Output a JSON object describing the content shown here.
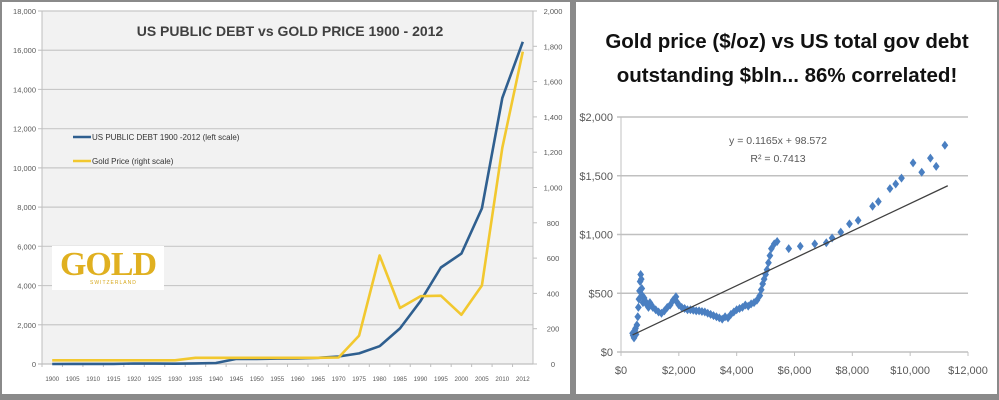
{
  "chart_data": [
    {
      "type": "line",
      "title": "US PUBLIC DEBT vs GOLD PRICE 1900 - 2012",
      "xlabel": "",
      "ylabel": "",
      "categories": [
        "1900",
        "1905",
        "1910",
        "1915",
        "1920",
        "1925",
        "1930",
        "1935",
        "1940",
        "1945",
        "1950",
        "1955",
        "1960",
        "1965",
        "1970",
        "1975",
        "1980",
        "1985",
        "1990",
        "1995",
        "2000",
        "2005",
        "2010",
        "2012"
      ],
      "y_left": {
        "ylim": [
          0,
          18000
        ],
        "ticks": [
          "0",
          "2,000",
          "4,000",
          "6,000",
          "8,000",
          "10,000",
          "12,000",
          "14,000",
          "16,000",
          "18,000"
        ]
      },
      "y_right": {
        "ylim": [
          0,
          2000
        ],
        "ticks": [
          "0",
          "200",
          "400",
          "600",
          "800",
          "1,000",
          "1,200",
          "1,400",
          "1,600",
          "1,800",
          "2,000"
        ]
      },
      "grid": true,
      "legend_placement": "left-middle",
      "series": [
        {
          "name": "US PUBLIC DEBT 1900 -2012 (left scale)",
          "axis": "left",
          "color": "#2f5f8f",
          "values": [
            2,
            3,
            3,
            3,
            24,
            21,
            16,
            29,
            51,
            259,
            257,
            273,
            286,
            317,
            381,
            542,
            909,
            1817,
            3206,
            4921,
            5629,
            7933,
            13562,
            16432
          ]
        },
        {
          "name": "Gold Price (right scale)",
          "axis": "right",
          "color": "#f2c82f",
          "values": [
            21,
            21,
            21,
            21,
            21,
            21,
            21,
            35,
            35,
            35,
            35,
            35,
            35,
            35,
            37,
            161,
            615,
            317,
            384,
            387,
            279,
            445,
            1225,
            1770
          ]
        }
      ],
      "watermark": {
        "main": "GOLD",
        "sub": "SWITZERLAND"
      }
    },
    {
      "type": "scatter",
      "title": "Gold price ($/oz) vs US total gov debt outstanding $bln... 86% correlated!",
      "title_lines": [
        "Gold price ($/oz) vs US total gov debt",
        "outstanding $bln... 86% correlated!"
      ],
      "xlabel": "",
      "ylabel": "",
      "xlim": [
        0,
        12000
      ],
      "ylim": [
        0,
        2000
      ],
      "x_ticks": [
        "$0",
        "$2,000",
        "$4,000",
        "$6,000",
        "$8,000",
        "$10,000",
        "$12,000"
      ],
      "y_ticks": [
        "$0",
        "$500",
        "$1,000",
        "$1,500",
        "$2,000"
      ],
      "grid": true,
      "marker_color": "#4a7fc1",
      "trendline": {
        "slope": 0.1165,
        "intercept": 98.572,
        "x_range": [
          400,
          11300
        ],
        "color": "#404040"
      },
      "annotations": [
        "y = 0.1165x + 98.572",
        "R² = 0.7413"
      ],
      "points": [
        [
          400,
          160
        ],
        [
          420,
          140
        ],
        [
          450,
          120
        ],
        [
          480,
          180
        ],
        [
          500,
          200
        ],
        [
          520,
          150
        ],
        [
          550,
          230
        ],
        [
          580,
          300
        ],
        [
          600,
          380
        ],
        [
          620,
          450
        ],
        [
          640,
          520
        ],
        [
          660,
          600
        ],
        [
          680,
          660
        ],
        [
          700,
          620
        ],
        [
          720,
          540
        ],
        [
          740,
          480
        ],
        [
          760,
          420
        ],
        [
          800,
          460
        ],
        [
          850,
          430
        ],
        [
          900,
          400
        ],
        [
          950,
          380
        ],
        [
          1000,
          420
        ],
        [
          1050,
          400
        ],
        [
          1100,
          380
        ],
        [
          1200,
          360
        ],
        [
          1300,
          340
        ],
        [
          1400,
          330
        ],
        [
          1500,
          350
        ],
        [
          1600,
          380
        ],
        [
          1700,
          400
        ],
        [
          1800,
          440
        ],
        [
          1900,
          470
        ],
        [
          1950,
          420
        ],
        [
          2000,
          400
        ],
        [
          2100,
          380
        ],
        [
          2200,
          370
        ],
        [
          2300,
          360
        ],
        [
          2400,
          360
        ],
        [
          2500,
          355
        ],
        [
          2600,
          350
        ],
        [
          2700,
          350
        ],
        [
          2800,
          345
        ],
        [
          2900,
          340
        ],
        [
          3000,
          330
        ],
        [
          3100,
          320
        ],
        [
          3200,
          310
        ],
        [
          3300,
          300
        ],
        [
          3400,
          290
        ],
        [
          3500,
          280
        ],
        [
          3600,
          300
        ],
        [
          3700,
          290
        ],
        [
          3800,
          320
        ],
        [
          3900,
          340
        ],
        [
          4000,
          360
        ],
        [
          4100,
          370
        ],
        [
          4200,
          380
        ],
        [
          4300,
          400
        ],
        [
          4400,
          390
        ],
        [
          4500,
          410
        ],
        [
          4600,
          420
        ],
        [
          4700,
          440
        ],
        [
          4800,
          480
        ],
        [
          4850,
          530
        ],
        [
          4900,
          580
        ],
        [
          4950,
          620
        ],
        [
          5000,
          660
        ],
        [
          5050,
          700
        ],
        [
          5100,
          760
        ],
        [
          5150,
          820
        ],
        [
          5200,
          880
        ],
        [
          5300,
          920
        ],
        [
          5400,
          940
        ],
        [
          5800,
          880
        ],
        [
          6200,
          900
        ],
        [
          6700,
          920
        ],
        [
          7100,
          930
        ],
        [
          7300,
          970
        ],
        [
          7600,
          1020
        ],
        [
          7900,
          1090
        ],
        [
          8200,
          1120
        ],
        [
          8700,
          1240
        ],
        [
          8900,
          1280
        ],
        [
          9300,
          1390
        ],
        [
          9500,
          1430
        ],
        [
          9700,
          1480
        ],
        [
          10100,
          1610
        ],
        [
          10400,
          1530
        ],
        [
          10700,
          1650
        ],
        [
          10900,
          1580
        ],
        [
          11200,
          1760
        ]
      ]
    }
  ]
}
